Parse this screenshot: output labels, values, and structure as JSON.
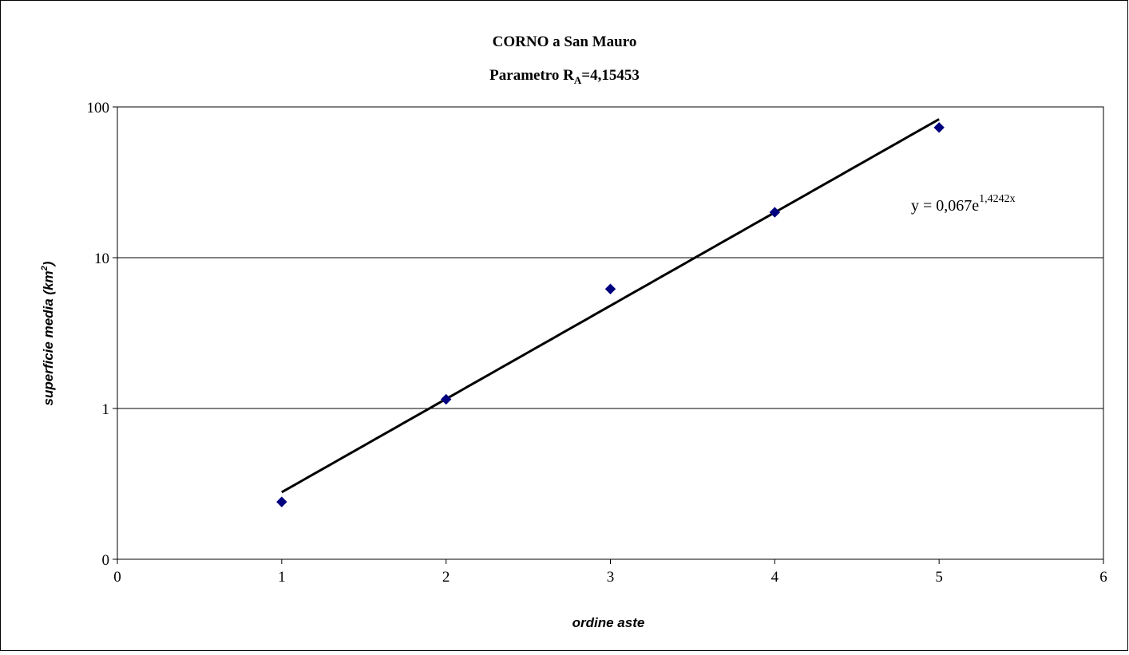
{
  "chart_data": {
    "type": "scatter",
    "title_line1": "CORNO a San Mauro",
    "title_line2_prefix": "Parametro R",
    "title_line2_sub": "A",
    "title_line2_suffix": "=4,15453",
    "xlabel": "ordine aste",
    "ylabel_main": "superficie media (km",
    "ylabel_sup": "2",
    "ylabel_end": ")",
    "xlim": [
      0,
      6
    ],
    "ylim": [
      0.1,
      100
    ],
    "yscale": "log",
    "x_ticks": [
      0,
      1,
      2,
      3,
      4,
      5,
      6
    ],
    "y_ticks": [
      {
        "value": 0.1,
        "label": "0"
      },
      {
        "value": 1,
        "label": "1"
      },
      {
        "value": 10,
        "label": "10"
      },
      {
        "value": 100,
        "label": "100"
      }
    ],
    "grid": "horizontal",
    "series": [
      {
        "x": [
          1,
          2,
          3,
          4,
          5
        ],
        "y": [
          0.24,
          1.15,
          6.2,
          20,
          73
        ],
        "marker": "diamond",
        "color": "#00007F"
      }
    ],
    "trendline": {
      "type": "exponential",
      "a": 0.067,
      "b": 1.4242,
      "x_range": [
        1,
        5
      ],
      "color": "#000000",
      "equation_prefix": "y = 0,067e",
      "equation_exponent": "1,4242x"
    }
  }
}
